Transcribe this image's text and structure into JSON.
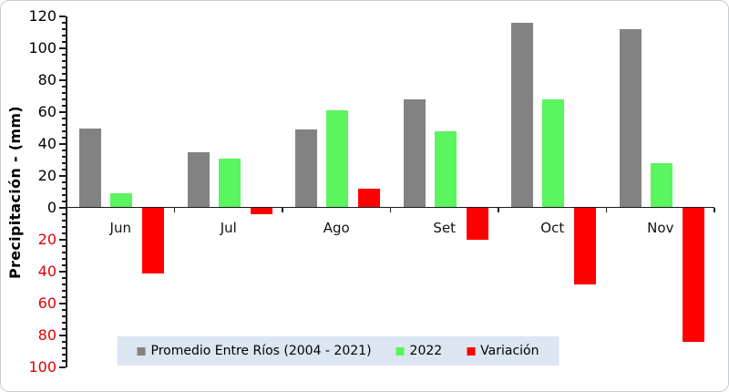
{
  "chart_data": {
    "type": "bar",
    "title": "",
    "ylabel": "Precipitación - (mm)",
    "xlabel": "",
    "categories": [
      "Jun",
      "Jul",
      "Ago",
      "Set",
      "Oct",
      "Nov"
    ],
    "series": [
      {
        "name": "Promedio Entre Ríos (2004 - 2021)",
        "color": "#828282",
        "values": [
          50,
          35,
          49,
          68,
          116,
          112
        ]
      },
      {
        "name": "2022",
        "color": "#5af55f",
        "values": [
          9,
          31,
          61,
          48,
          68,
          28
        ]
      },
      {
        "name": "Variación",
        "color": "#ff0000",
        "values": [
          -41,
          -4,
          12,
          -20,
          -48,
          -84
        ]
      }
    ],
    "ylim": [
      -100,
      120
    ],
    "y_major_step": 20,
    "y_minor_step": 4,
    "grid": false,
    "legend_position": "bottom-center",
    "legend_background": "#dce6f1",
    "positive_tick_label_color": "#000000",
    "negative_tick_label_color": "#e00000",
    "axis_color": "#1a1a1a",
    "note_negative_labels": "negative y tick labels shown as absolute values in red"
  }
}
